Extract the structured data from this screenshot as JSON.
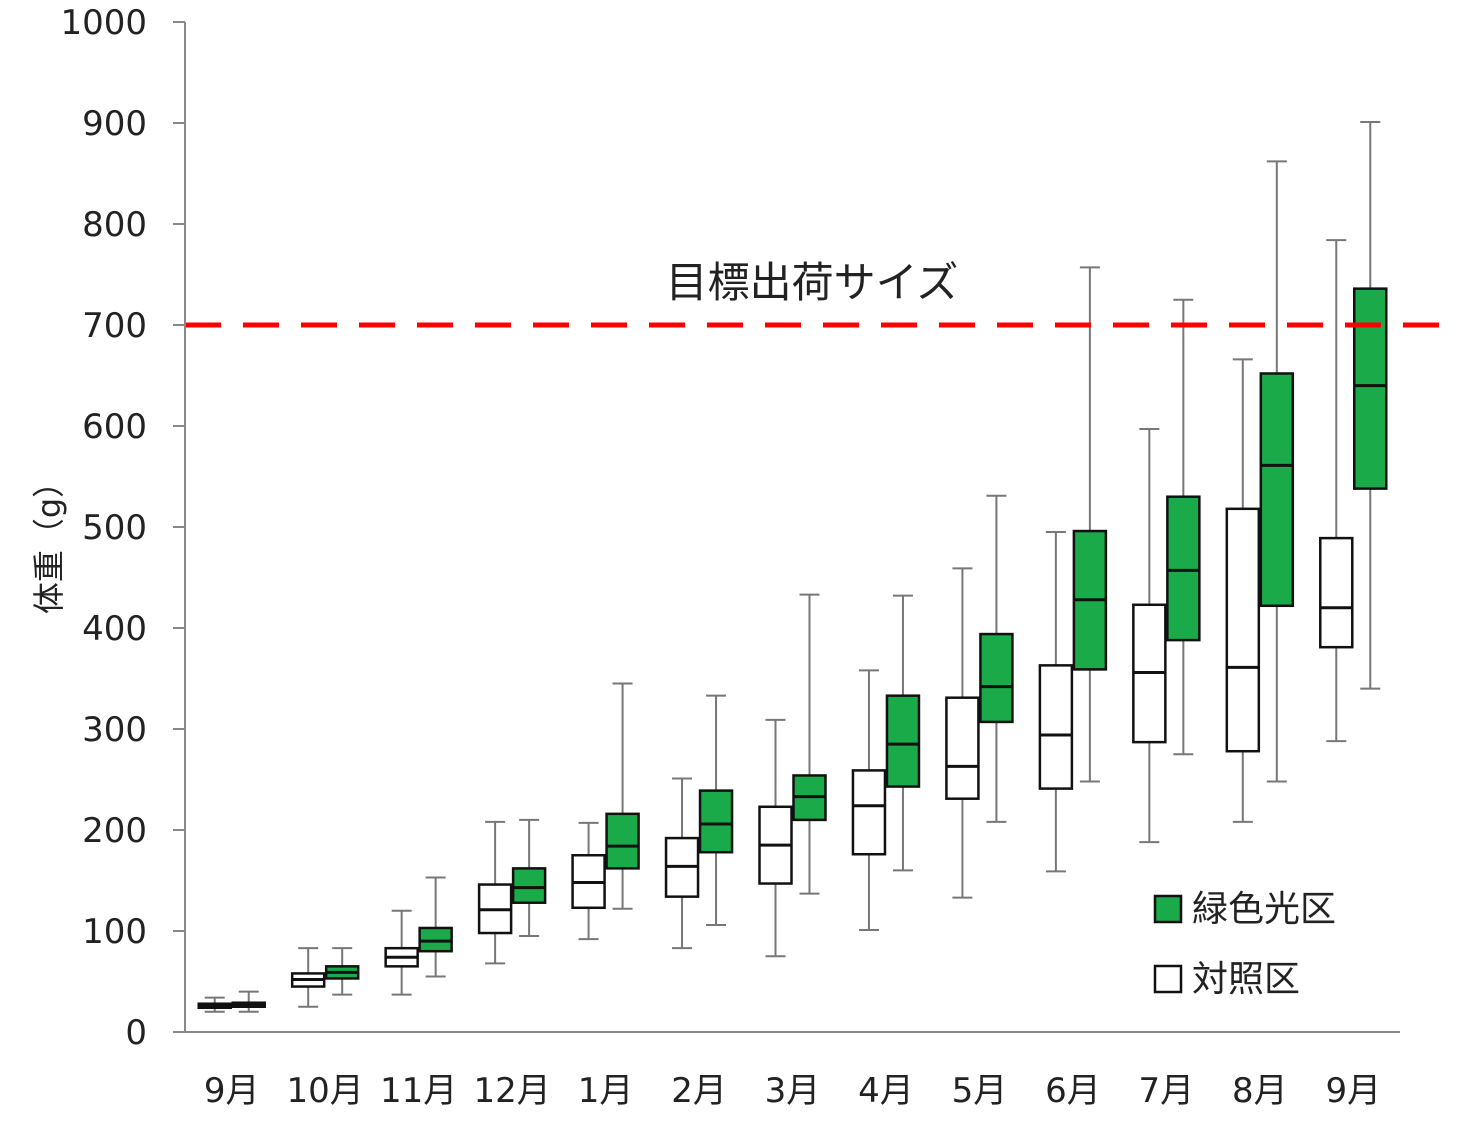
{
  "chart_data": {
    "type": "box",
    "ylabel": "体重（g）",
    "ylim": [
      0,
      1000
    ],
    "yticks": [
      0,
      100,
      200,
      300,
      400,
      500,
      600,
      700,
      800,
      900,
      1000
    ],
    "categories": [
      "9月",
      "10月",
      "11月",
      "12月",
      "1月",
      "2月",
      "3月",
      "4月",
      "5月",
      "6月",
      "7月",
      "8月",
      "9月"
    ],
    "reference_line": {
      "value": 700,
      "label": "目標出荷サイズ",
      "color": "#ff0000"
    },
    "legend_position": "bottom-right",
    "series": [
      {
        "name": "緑色光区",
        "color": "#1aaa4a",
        "boxes": [
          {
            "min": 20,
            "q1": 25,
            "median": 27,
            "q3": 29,
            "max": 40
          },
          {
            "min": 37,
            "q1": 53,
            "median": 59,
            "q3": 65,
            "max": 83
          },
          {
            "min": 55,
            "q1": 80,
            "median": 90,
            "q3": 103,
            "max": 153
          },
          {
            "min": 95,
            "q1": 128,
            "median": 143,
            "q3": 162,
            "max": 210
          },
          {
            "min": 122,
            "q1": 162,
            "median": 184,
            "q3": 216,
            "max": 345
          },
          {
            "min": 106,
            "q1": 178,
            "median": 206,
            "q3": 239,
            "max": 333
          },
          {
            "min": 137,
            "q1": 210,
            "median": 233,
            "q3": 254,
            "max": 433
          },
          {
            "min": 160,
            "q1": 243,
            "median": 285,
            "q3": 333,
            "max": 432
          },
          {
            "min": 208,
            "q1": 307,
            "median": 342,
            "q3": 394,
            "max": 531
          },
          {
            "min": 248,
            "q1": 359,
            "median": 428,
            "q3": 496,
            "max": 757
          },
          {
            "min": 275,
            "q1": 388,
            "median": 457,
            "q3": 530,
            "max": 725
          },
          {
            "min": 248,
            "q1": 422,
            "median": 561,
            "q3": 652,
            "max": 862
          },
          {
            "min": 340,
            "q1": 538,
            "median": 640,
            "q3": 736,
            "max": 901
          }
        ]
      },
      {
        "name": "対照区",
        "color": "#ffffff",
        "boxes": [
          {
            "min": 20,
            "q1": 24,
            "median": 26,
            "q3": 28,
            "max": 34
          },
          {
            "min": 25,
            "q1": 45,
            "median": 52,
            "q3": 58,
            "max": 83
          },
          {
            "min": 37,
            "q1": 65,
            "median": 74,
            "q3": 83,
            "max": 120
          },
          {
            "min": 68,
            "q1": 98,
            "median": 121,
            "q3": 146,
            "max": 208
          },
          {
            "min": 92,
            "q1": 123,
            "median": 148,
            "q3": 175,
            "max": 207
          },
          {
            "min": 83,
            "q1": 134,
            "median": 164,
            "q3": 192,
            "max": 251
          },
          {
            "min": 75,
            "q1": 147,
            "median": 185,
            "q3": 223,
            "max": 309
          },
          {
            "min": 101,
            "q1": 176,
            "median": 224,
            "q3": 259,
            "max": 358
          },
          {
            "min": 133,
            "q1": 231,
            "median": 263,
            "q3": 331,
            "max": 459
          },
          {
            "min": 159,
            "q1": 241,
            "median": 294,
            "q3": 363,
            "max": 495
          },
          {
            "min": 188,
            "q1": 287,
            "median": 356,
            "q3": 423,
            "max": 597
          },
          {
            "min": 208,
            "q1": 278,
            "median": 361,
            "q3": 518,
            "max": 666
          },
          {
            "min": 288,
            "q1": 381,
            "median": 420,
            "q3": 489,
            "max": 784
          }
        ]
      }
    ]
  }
}
